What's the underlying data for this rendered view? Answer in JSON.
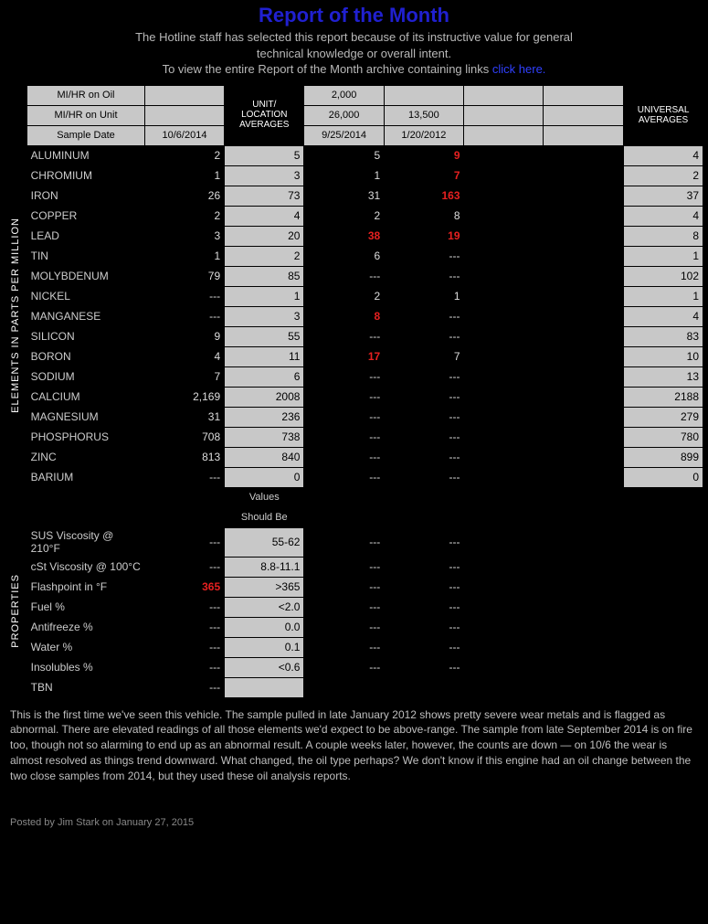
{
  "title": "Report of the Month",
  "intro": {
    "l1": "The Hotline staff has selected this report because of its instructive value for general",
    "l2": "technical knowledge or overall intent.",
    "l3_prefix": "To view the entire Report of the Month archive containing links ",
    "link": "click here."
  },
  "headers": {
    "mihr_oil": "MI/HR on Oil",
    "mihr_unit": "MI/HR on Unit",
    "sample_date": "Sample Date",
    "unit_loc": "UNIT/ LOCATION AVERAGES",
    "univ": "UNIVERSAL AVERAGES"
  },
  "sample_meta": {
    "s1_date": "10/6/2014",
    "s2_oil": "2,000",
    "s2_unit": "26,000",
    "s2_date": "9/25/2014",
    "s3_unit": "13,500",
    "s3_date": "1/20/2012"
  },
  "sidebar": {
    "elements": "ELEMENTS IN PARTS PER MILLION",
    "properties": "PROPERTIES"
  },
  "elements": [
    {
      "label": "ALUMINUM",
      "s1": "2",
      "avg1": "5",
      "s2": "5",
      "s3": "9",
      "s3red": true,
      "avg2": "4"
    },
    {
      "label": "CHROMIUM",
      "s1": "1",
      "avg1": "3",
      "s2": "1",
      "s3": "7",
      "s3red": true,
      "avg2": "2"
    },
    {
      "label": "IRON",
      "s1": "26",
      "avg1": "73",
      "s2": "31",
      "s3": "163",
      "s3red": true,
      "avg2": "37"
    },
    {
      "label": "COPPER",
      "s1": "2",
      "avg1": "4",
      "s2": "2",
      "s3": "8",
      "avg2": "4"
    },
    {
      "label": "LEAD",
      "s1": "3",
      "avg1": "20",
      "s2": "38",
      "s2red": true,
      "s3": "19",
      "s3red": true,
      "avg2": "8"
    },
    {
      "label": "TIN",
      "s1": "1",
      "avg1": "2",
      "s2": "6",
      "s3": "---",
      "avg2": "1"
    },
    {
      "label": "MOLYBDENUM",
      "s1": "79",
      "avg1": "85",
      "s2": "---",
      "s3": "---",
      "avg2": "102"
    },
    {
      "label": "NICKEL",
      "s1": "---",
      "avg1": "1",
      "s2": "2",
      "s3": "1",
      "avg2": "1"
    },
    {
      "label": "MANGANESE",
      "s1": "---",
      "avg1": "3",
      "s2": "8",
      "s2red": true,
      "s3": "---",
      "avg2": "4"
    },
    {
      "label": "SILICON",
      "s1": "9",
      "avg1": "55",
      "s2": "---",
      "s3": "---",
      "avg2": "83"
    },
    {
      "label": "BORON",
      "s1": "4",
      "avg1": "11",
      "s2": "17",
      "s2red": true,
      "s3": "7",
      "avg2": "10"
    },
    {
      "label": "SODIUM",
      "s1": "7",
      "avg1": "6",
      "s2": "---",
      "s3": "---",
      "avg2": "13"
    },
    {
      "label": "CALCIUM",
      "s1": "2,169",
      "avg1": "2008",
      "s2": "---",
      "s3": "---",
      "avg2": "2188"
    },
    {
      "label": "MAGNESIUM",
      "s1": "31",
      "avg1": "236",
      "s2": "---",
      "s3": "---",
      "avg2": "279"
    },
    {
      "label": "PHOSPHORUS",
      "s1": "708",
      "avg1": "738",
      "s2": "---",
      "s3": "---",
      "avg2": "780"
    },
    {
      "label": "ZINC",
      "s1": "813",
      "avg1": "840",
      "s2": "---",
      "s3": "---",
      "avg2": "899"
    },
    {
      "label": "BARIUM",
      "s1": "---",
      "avg1": "0",
      "s2": "---",
      "s3": "---",
      "avg2": "0"
    }
  ],
  "spec": {
    "l1": "Values",
    "l2": "Should Be"
  },
  "properties": [
    {
      "label": "SUS Viscosity @ 210°F",
      "s1": "---",
      "avg1": "55-62",
      "s2": "---",
      "s3": "---"
    },
    {
      "label": "cSt Viscosity @ 100°C",
      "s1": "---",
      "avg1": "8.8-11.1",
      "s2": "---",
      "s3": "---"
    },
    {
      "label": "Flashpoint in °F",
      "s1": "365",
      "s1red": true,
      "avg1": ">365",
      "s2": "---",
      "s3": "---"
    },
    {
      "label": "Fuel %",
      "s1": "---",
      "avg1": "<2.0",
      "s2": "---",
      "s3": "---"
    },
    {
      "label": "Antifreeze %",
      "s1": "---",
      "avg1": "0.0",
      "s2": "---",
      "s3": "---"
    },
    {
      "label": "Water %",
      "s1": "---",
      "avg1": "0.1",
      "s2": "---",
      "s3": "---"
    },
    {
      "label": "Insolubles %",
      "s1": "---",
      "avg1": "<0.6",
      "s2": "---",
      "s3": "---"
    },
    {
      "label": "TBN",
      "s1": "---",
      "avg1": "",
      "s2": "",
      "s3": ""
    }
  ],
  "note": "This is the first time we've seen this vehicle. The sample pulled in late January 2012 shows pretty severe wear metals and is flagged as abnormal. There are elevated readings of all those elements we'd expect to be above-range. The sample from late September 2014 is on fire too, though not so alarming to end up as an abnormal result. A couple weeks later, however, the counts are down — on 10/6 the wear is almost resolved as things trend downward. What changed, the oil type perhaps? We don't know if this engine had an oil change between the two close samples from 2014, but they used these oil analysis reports.",
  "foot": "Posted by Jim Stark on January 27, 2015"
}
